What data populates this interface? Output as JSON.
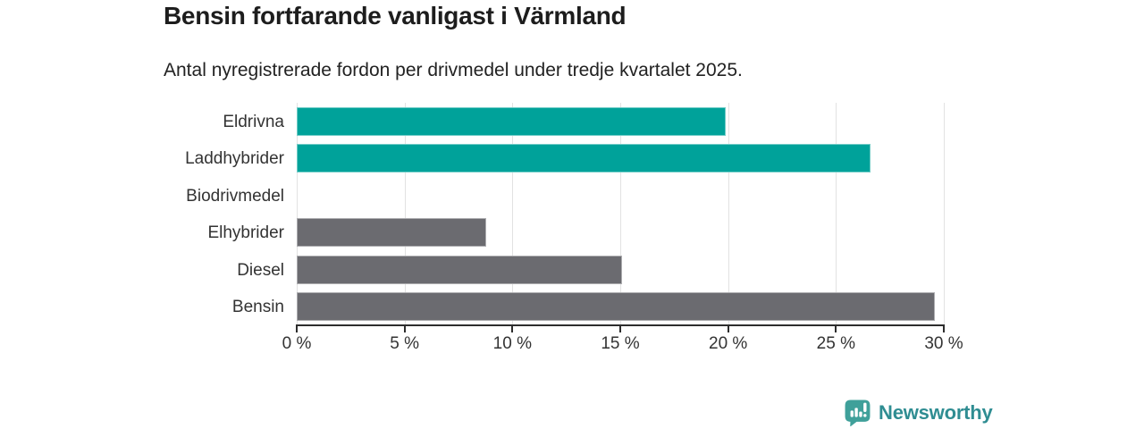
{
  "chart_data": {
    "type": "bar",
    "orientation": "horizontal",
    "title": "Bensin fortfarande vanligast i Värmland",
    "subtitle": "Antal nyregistrerade fordon per drivmedel under tredje kvartalet 2025.",
    "categories": [
      "Eldrivna",
      "Laddhybrider",
      "Biodrivmedel",
      "Elhybrider",
      "Diesel",
      "Bensin"
    ],
    "values": [
      19.9,
      26.6,
      0,
      8.8,
      15.1,
      29.6
    ],
    "unit": "%",
    "bar_colors": [
      "#00a29a",
      "#00a29a",
      "#6b6b70",
      "#6b6b70",
      "#6b6b70",
      "#6b6b70"
    ],
    "x_ticks": [
      {
        "value": 0,
        "label": "0 %"
      },
      {
        "value": 5,
        "label": "5 %"
      },
      {
        "value": 10,
        "label": "10 %"
      },
      {
        "value": 15,
        "label": "15 %"
      },
      {
        "value": 20,
        "label": "20 %"
      },
      {
        "value": 25,
        "label": "25 %"
      },
      {
        "value": 30,
        "label": "30 %"
      }
    ],
    "xlim": [
      0,
      30
    ],
    "grid": true,
    "legend": "none"
  },
  "colors": {
    "teal": "#00a29a",
    "gray": "#6b6b70",
    "grid": "#e2e2e2",
    "axis": "#2d2d2d",
    "title_text": "#1d1d1d",
    "label_text": "#333333",
    "logo_teal": "#2f8d92",
    "logo_icon_teal": "#3fa09a"
  },
  "branding": {
    "logo_text": "Newsworthy",
    "logo_icon": "newsworthy-chart-bubble-icon"
  }
}
